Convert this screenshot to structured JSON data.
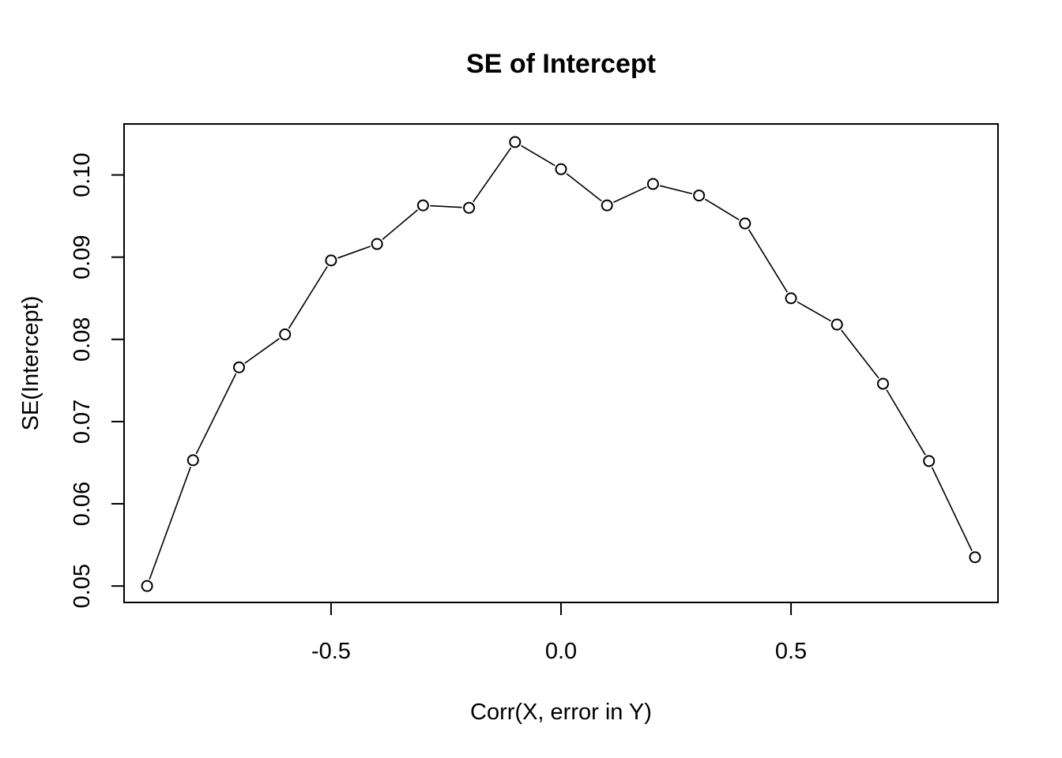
{
  "chart_data": {
    "type": "line",
    "title": "SE of Intercept",
    "xlabel": "Corr(X, error in Y)",
    "ylabel": "SE(Intercept)",
    "x": [
      -0.9,
      -0.8,
      -0.7,
      -0.6,
      -0.5,
      -0.4,
      -0.3,
      -0.2,
      -0.1,
      0.0,
      0.1,
      0.2,
      0.3,
      0.4,
      0.5,
      0.6,
      0.7,
      0.8,
      0.9
    ],
    "series": [
      {
        "values": [
          0.05,
          0.0653,
          0.0766,
          0.0806,
          0.0896,
          0.0916,
          0.0963,
          0.096,
          0.104,
          0.1007,
          0.0963,
          0.0989,
          0.0975,
          0.0941,
          0.085,
          0.0818,
          0.0746,
          0.0652,
          0.0535
        ],
        "marker": "open-circle",
        "line": true
      }
    ],
    "xlim": [
      -0.95,
      0.95
    ],
    "ylim": [
      0.048,
      0.1062
    ],
    "xticks": [
      -0.5,
      0.0,
      0.5
    ],
    "xtick_labels": [
      "-0.5",
      "0.0",
      "0.5"
    ],
    "yticks": [
      0.05,
      0.06,
      0.07,
      0.08,
      0.09,
      0.1
    ],
    "ytick_labels": [
      "0.05",
      "0.06",
      "0.07",
      "0.08",
      "0.09",
      "0.10"
    ],
    "grid": false,
    "colors": {
      "line": "#000000",
      "marker_fill": "#ffffff",
      "background": "#ffffff"
    }
  }
}
